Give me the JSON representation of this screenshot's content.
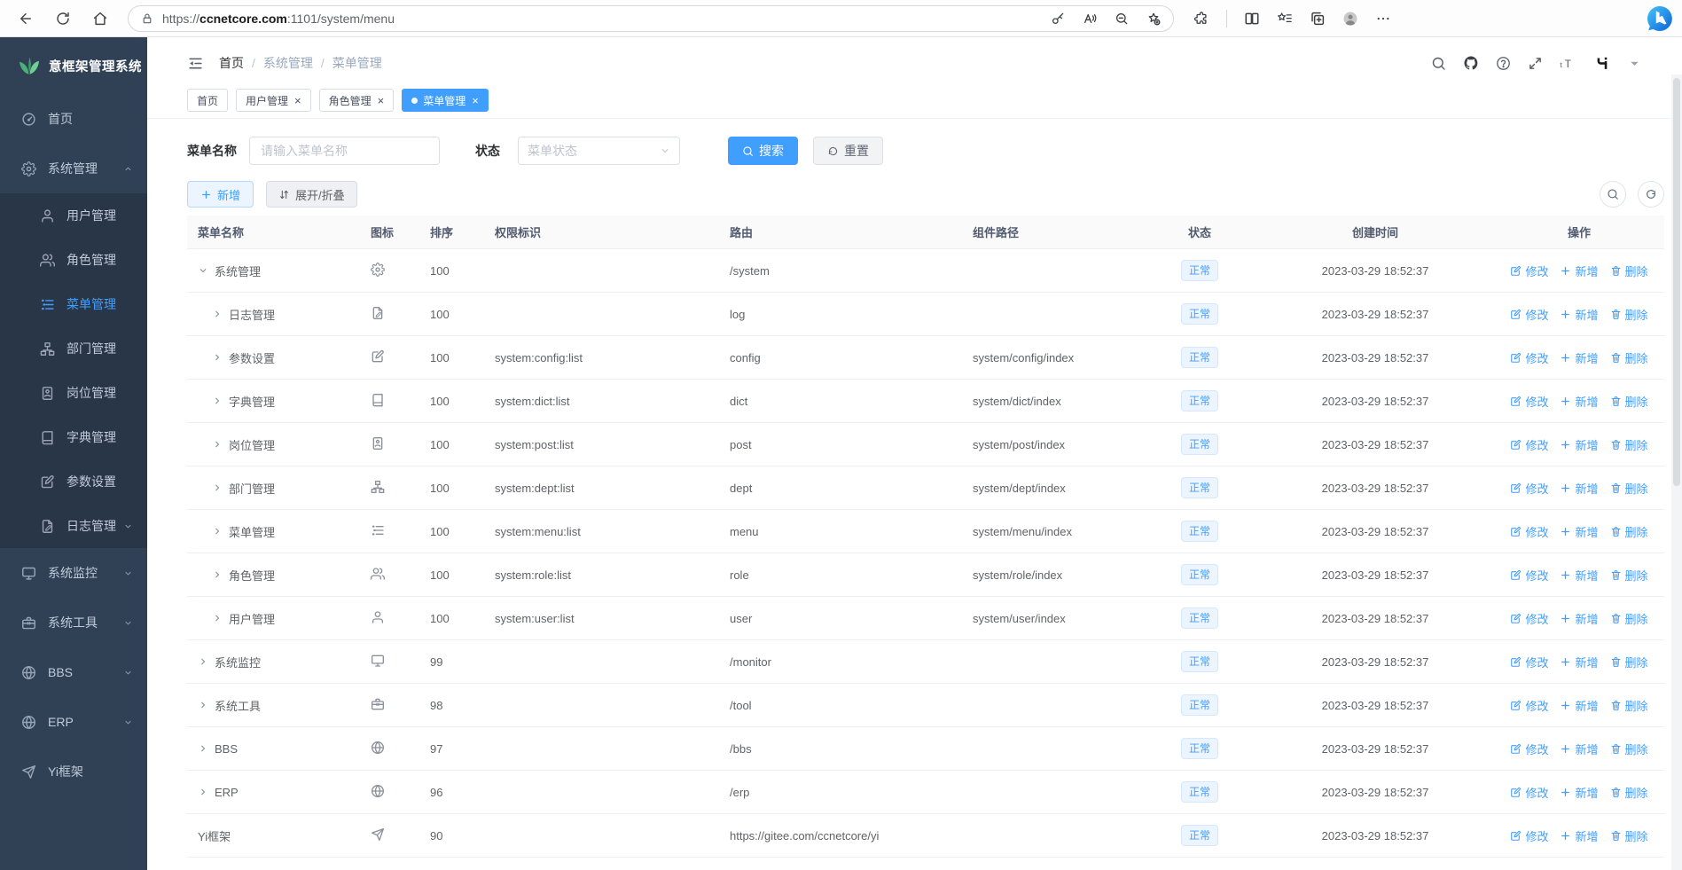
{
  "browser": {
    "url_scheme": "https://",
    "url_host": "ccnetcore.com",
    "url_path": ":1101/system/menu"
  },
  "ui": {
    "close_glyph": "×",
    "breadcrumb_sep": "/"
  },
  "sidebar": {
    "title": "意框架管理系统",
    "items": [
      {
        "key": "home",
        "label": "首页",
        "icon": "dashboard",
        "type": "root"
      },
      {
        "key": "system",
        "label": "系统管理",
        "icon": "gear",
        "type": "root",
        "chevron": "up"
      },
      {
        "key": "user",
        "label": "用户管理",
        "icon": "user",
        "type": "sub"
      },
      {
        "key": "role",
        "label": "角色管理",
        "icon": "users",
        "type": "sub"
      },
      {
        "key": "menu",
        "label": "菜单管理",
        "icon": "menu",
        "type": "sub",
        "active": true
      },
      {
        "key": "dept",
        "label": "部门管理",
        "icon": "tree",
        "type": "sub"
      },
      {
        "key": "post",
        "label": "岗位管理",
        "icon": "badge",
        "type": "sub"
      },
      {
        "key": "dict",
        "label": "字典管理",
        "icon": "book",
        "type": "sub"
      },
      {
        "key": "config",
        "label": "参数设置",
        "icon": "edit",
        "type": "sub"
      },
      {
        "key": "log",
        "label": "日志管理",
        "icon": "logdoc",
        "type": "sub",
        "chevron": "down"
      },
      {
        "key": "monitor",
        "label": "系统监控",
        "icon": "monitor",
        "type": "root",
        "chevron": "down"
      },
      {
        "key": "tool",
        "label": "系统工具",
        "icon": "toolbox",
        "type": "root",
        "chevron": "down"
      },
      {
        "key": "bbs",
        "label": "BBS",
        "icon": "globe",
        "type": "root",
        "chevron": "down"
      },
      {
        "key": "erp",
        "label": "ERP",
        "icon": "globe",
        "type": "root",
        "chevron": "down"
      },
      {
        "key": "yi",
        "label": "Yi框架",
        "icon": "send",
        "type": "root"
      }
    ]
  },
  "header": {
    "breadcrumb": [
      "首页",
      "系统管理",
      "菜单管理"
    ]
  },
  "tabs": [
    {
      "label": "首页",
      "closable": false,
      "active": false
    },
    {
      "label": "用户管理",
      "closable": true,
      "active": false
    },
    {
      "label": "角色管理",
      "closable": true,
      "active": false
    },
    {
      "label": "菜单管理",
      "closable": true,
      "active": true
    }
  ],
  "filters": {
    "name_label": "菜单名称",
    "name_placeholder": "请输入菜单名称",
    "status_label": "状态",
    "status_placeholder": "菜单状态",
    "search_label": "搜索",
    "reset_label": "重置"
  },
  "toolbar": {
    "add_label": "新增",
    "toggle_label": "展开/折叠"
  },
  "table": {
    "columns": [
      "菜单名称",
      "图标",
      "排序",
      "权限标识",
      "路由",
      "组件路径",
      "状态",
      "创建时间",
      "操作"
    ],
    "actions": {
      "edit": "修改",
      "add": "新增",
      "delete": "删除"
    },
    "rows": [
      {
        "name": "系统管理",
        "icon": "gear",
        "sort": "100",
        "perm": "",
        "route": "/system",
        "component": "",
        "status": "正常",
        "time": "2023-03-29 18:52:37",
        "arrow": "down",
        "level": 0
      },
      {
        "name": "日志管理",
        "icon": "logdoc",
        "sort": "100",
        "perm": "",
        "route": "log",
        "component": "",
        "status": "正常",
        "time": "2023-03-29 18:52:37",
        "arrow": "right",
        "level": 1
      },
      {
        "name": "参数设置",
        "icon": "edit",
        "sort": "100",
        "perm": "system:config:list",
        "route": "config",
        "component": "system/config/index",
        "status": "正常",
        "time": "2023-03-29 18:52:37",
        "arrow": "right",
        "level": 1
      },
      {
        "name": "字典管理",
        "icon": "book",
        "sort": "100",
        "perm": "system:dict:list",
        "route": "dict",
        "component": "system/dict/index",
        "status": "正常",
        "time": "2023-03-29 18:52:37",
        "arrow": "right",
        "level": 1
      },
      {
        "name": "岗位管理",
        "icon": "badge",
        "sort": "100",
        "perm": "system:post:list",
        "route": "post",
        "component": "system/post/index",
        "status": "正常",
        "time": "2023-03-29 18:52:37",
        "arrow": "right",
        "level": 1
      },
      {
        "name": "部门管理",
        "icon": "tree",
        "sort": "100",
        "perm": "system:dept:list",
        "route": "dept",
        "component": "system/dept/index",
        "status": "正常",
        "time": "2023-03-29 18:52:37",
        "arrow": "right",
        "level": 1
      },
      {
        "name": "菜单管理",
        "icon": "menu",
        "sort": "100",
        "perm": "system:menu:list",
        "route": "menu",
        "component": "system/menu/index",
        "status": "正常",
        "time": "2023-03-29 18:52:37",
        "arrow": "right",
        "level": 1
      },
      {
        "name": "角色管理",
        "icon": "users",
        "sort": "100",
        "perm": "system:role:list",
        "route": "role",
        "component": "system/role/index",
        "status": "正常",
        "time": "2023-03-29 18:52:37",
        "arrow": "right",
        "level": 1
      },
      {
        "name": "用户管理",
        "icon": "user",
        "sort": "100",
        "perm": "system:user:list",
        "route": "user",
        "component": "system/user/index",
        "status": "正常",
        "time": "2023-03-29 18:52:37",
        "arrow": "right",
        "level": 1
      },
      {
        "name": "系统监控",
        "icon": "monitor",
        "sort": "99",
        "perm": "",
        "route": "/monitor",
        "component": "",
        "status": "正常",
        "time": "2023-03-29 18:52:37",
        "arrow": "right",
        "level": 0
      },
      {
        "name": "系统工具",
        "icon": "toolbox",
        "sort": "98",
        "perm": "",
        "route": "/tool",
        "component": "",
        "status": "正常",
        "time": "2023-03-29 18:52:37",
        "arrow": "right",
        "level": 0
      },
      {
        "name": "BBS",
        "icon": "globe",
        "sort": "97",
        "perm": "",
        "route": "/bbs",
        "component": "",
        "status": "正常",
        "time": "2023-03-29 18:52:37",
        "arrow": "right",
        "level": 0
      },
      {
        "name": "ERP",
        "icon": "globe",
        "sort": "96",
        "perm": "",
        "route": "/erp",
        "component": "",
        "status": "正常",
        "time": "2023-03-29 18:52:37",
        "arrow": "right",
        "level": 0
      },
      {
        "name": "Yi框架",
        "icon": "send",
        "sort": "90",
        "perm": "",
        "route": "https://gitee.com/ccnetcore/yi",
        "component": "",
        "status": "正常",
        "time": "2023-03-29 18:52:37",
        "arrow": "none",
        "level": 0
      }
    ]
  },
  "colors": {
    "accent": "#409eff",
    "sidebar_bg": "#304156",
    "sidebar_sub_bg": "#293648",
    "status_badge_bg": "#ecf5ff"
  }
}
